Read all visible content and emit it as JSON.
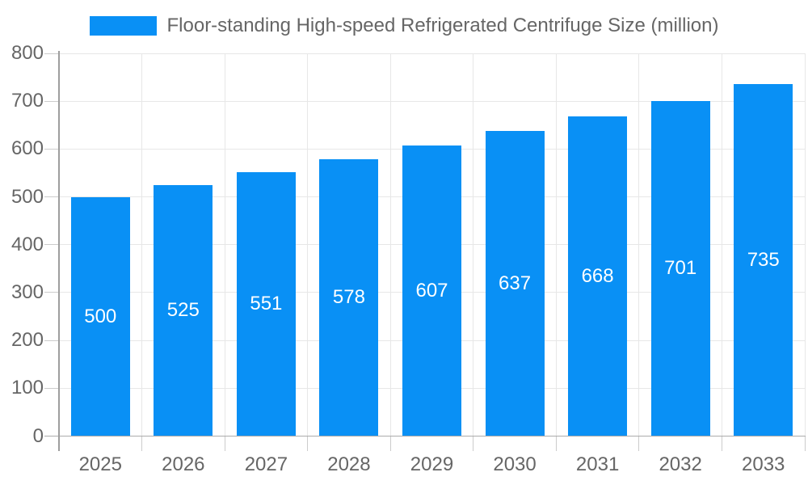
{
  "chart_data": {
    "type": "bar",
    "title": "",
    "legend": "Floor-standing High-speed Refrigerated Centrifuge Size (million)",
    "legend_position": "top",
    "categories": [
      "2025",
      "2026",
      "2027",
      "2028",
      "2029",
      "2030",
      "2031",
      "2032",
      "2033"
    ],
    "values": [
      500,
      525,
      551,
      578,
      607,
      637,
      668,
      701,
      735
    ],
    "xlabel": "",
    "ylabel": "",
    "ylim": [
      0,
      800
    ],
    "ytick_step": 100,
    "grid": true,
    "bar_color": "#0990f5",
    "bar_value_label_color": "#ffffff",
    "axis_text_color": "#666666"
  }
}
